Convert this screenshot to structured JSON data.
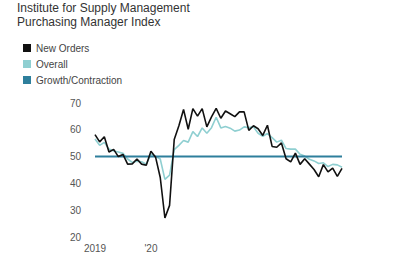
{
  "chart_data": {
    "type": "line",
    "title": "Institute for Supply Management Purchasing Manager Index",
    "categories": [
      "2019",
      null,
      null,
      null,
      null,
      null,
      null,
      null,
      null,
      null,
      null,
      null,
      "'20",
      null,
      null,
      null,
      null,
      null,
      null,
      null,
      null,
      null,
      null,
      null,
      null,
      null,
      null,
      null,
      null,
      null,
      null,
      null,
      null,
      null,
      null,
      null,
      null,
      null,
      null,
      null,
      null,
      null,
      null,
      null,
      null,
      null,
      null,
      null,
      null,
      null,
      null,
      null,
      null,
      null
    ],
    "series": [
      {
        "name": "New Orders",
        "color": "#111111",
        "values": [
          58.2,
          55.5,
          57.4,
          51.7,
          52.7,
          50.0,
          50.8,
          47.2,
          47.3,
          49.1,
          47.2,
          46.8,
          52.0,
          49.8,
          42.2,
          27.1,
          31.8,
          56.4,
          61.5,
          67.6,
          60.2,
          67.9,
          65.1,
          67.9,
          61.1,
          64.8,
          68.0,
          64.3,
          67.0,
          66.0,
          64.9,
          66.7,
          66.7,
          59.8,
          61.5,
          60.4,
          57.9,
          61.7,
          53.8,
          53.5,
          55.1,
          49.2,
          48.0,
          51.3,
          47.1,
          49.2,
          47.2,
          45.2,
          42.5,
          47.0,
          44.3,
          45.7,
          42.6,
          45.6
        ]
      },
      {
        "name": "Overall",
        "color": "#8fcfd1",
        "values": [
          56.6,
          54.2,
          55.3,
          52.8,
          52.1,
          51.7,
          51.2,
          49.1,
          47.8,
          48.3,
          48.1,
          47.2,
          50.9,
          50.1,
          49.1,
          41.5,
          43.1,
          52.6,
          54.2,
          56.0,
          55.4,
          59.3,
          57.5,
          60.7,
          58.7,
          60.8,
          64.7,
          60.7,
          61.2,
          60.6,
          59.5,
          59.9,
          61.1,
          60.8,
          61.1,
          58.7,
          57.6,
          58.6,
          57.1,
          55.4,
          56.1,
          53.0,
          52.8,
          52.8,
          50.9,
          50.2,
          49.0,
          48.4,
          47.4,
          47.7,
          46.3,
          47.1,
          46.9,
          46.0
        ]
      },
      {
        "name": "Growth/Contraction",
        "color": "#2e7f9c",
        "values": [
          50,
          50,
          50,
          50,
          50,
          50,
          50,
          50,
          50,
          50,
          50,
          50,
          50,
          50,
          50,
          50,
          50,
          50,
          50,
          50,
          50,
          50,
          50,
          50,
          50,
          50,
          50,
          50,
          50,
          50,
          50,
          50,
          50,
          50,
          50,
          50,
          50,
          50,
          50,
          50,
          50,
          50,
          50,
          50,
          50,
          50,
          50,
          50,
          50,
          50,
          50,
          50,
          50,
          50
        ]
      }
    ],
    "ylim": [
      20,
      70
    ],
    "yticks": [
      20,
      30,
      40,
      50,
      60,
      70
    ],
    "grid": false,
    "legend": "top-left"
  }
}
